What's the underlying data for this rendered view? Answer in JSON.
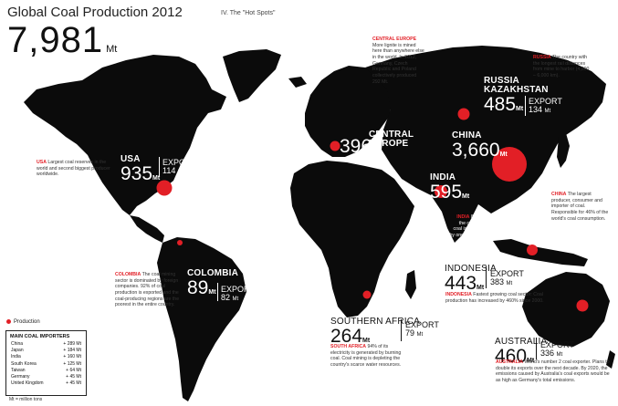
{
  "title": "Global Coal Production 2012",
  "subtitle": "IV. The \"Hot Spots\"",
  "total": {
    "value": "7,981",
    "unit": "Mt"
  },
  "colors": {
    "map": "#0b0b0b",
    "accent": "#e21f26",
    "background": "#ffffff"
  },
  "countries": [
    {
      "key": "usa",
      "name": "USA",
      "production": "935",
      "unit": "Mt",
      "export": "114",
      "export_label": "EXPORT",
      "bubble_mt": 935
    },
    {
      "key": "colombia",
      "name": "COLOMBIA",
      "production": "89",
      "unit": "Mt",
      "export": "82",
      "export_label": "EXPORT",
      "bubble_mt": 89
    },
    {
      "key": "central_europe",
      "name": "CENTRAL EUROPE",
      "production": "396",
      "unit": "Mt",
      "bubble_mt": 396
    },
    {
      "key": "russia",
      "name": "RUSSIA KAZAKHSTAN",
      "production": "485",
      "unit": "Mt",
      "export": "134",
      "export_label": "EXPORT",
      "bubble_mt": 485
    },
    {
      "key": "china",
      "name": "CHINA",
      "production": "3,660",
      "unit": "Mt",
      "bubble_mt": 3660
    },
    {
      "key": "india",
      "name": "INDIA",
      "production": "595",
      "unit": "Mt",
      "bubble_mt": 595
    },
    {
      "key": "indonesia",
      "name": "INDONESIA",
      "production": "443",
      "unit": "Mt",
      "export": "383",
      "export_label": "EXPORT",
      "bubble_mt": 443
    },
    {
      "key": "south_africa",
      "name": "SOUTHERN AFRICA",
      "production": "264",
      "unit": "Mt",
      "export": "79",
      "export_label": "EXPORT",
      "bubble_mt": 264
    },
    {
      "key": "australia",
      "name": "AUSTRALIA",
      "production": "460",
      "unit": "Mt",
      "export": "336",
      "export_label": "EXPORT",
      "bubble_mt": 460
    }
  ],
  "notes": {
    "usa": {
      "head": "USA",
      "text": "Largest coal reserves in the world and second biggest producer worldwide."
    },
    "colombia": {
      "head": "COLOMBIA",
      "text": "The coal mining sector is dominated by foreign companies. 92% of coal production is exported and the coal-producing regions are the poorest in the entire country."
    },
    "central_europe": {
      "head": "CENTRAL EUROPE",
      "text": "More lignite is mined here than anywhere else in the world. In 2012, Germany, Czech Republic and Poland collectively produced 292 Mt."
    },
    "russia": {
      "head": "RUSSIA",
      "text": "The country with the longest rail distances from mine to harbor (4,500 – 6,000 km)."
    },
    "china": {
      "head": "CHINA",
      "text": "The largest producer, consumer and importer of coal. Responsible for 46% of the world's coal consumption."
    },
    "india": {
      "head": "INDIA",
      "text": "80% of the country's coal is supplied by one company: Coal India."
    },
    "indonesia": {
      "head": "INDONESIA",
      "text": "Fastest growing coal sector: Coal production has increased by 460% since 2000."
    },
    "south_africa": {
      "head": "SOUTH AFRICA",
      "text": "94% of its electricity is generated by burning coal. Coal mining is depleting the country's scarce water resources."
    },
    "australia": {
      "head": "AUSTRALIA",
      "text": "World's number 2 coal exporter. Plans to double its exports over the next decade. By 2020, the emissions caused by Australia's coal exports would be as high as Germany's total emissions."
    }
  },
  "legend": {
    "label": "Production"
  },
  "importers": {
    "title": "MAIN COAL IMPORTERS",
    "rows": [
      {
        "country": "China",
        "value": "+ 289 Mt"
      },
      {
        "country": "Japan",
        "value": "+ 184 Mt"
      },
      {
        "country": "India",
        "value": "+ 160 Mt"
      },
      {
        "country": "South Korea",
        "value": "+ 125 Mt"
      },
      {
        "country": "Taiwan",
        "value": "+ 64 Mt"
      },
      {
        "country": "Germany",
        "value": "+ 45 Mt"
      },
      {
        "country": "United Kingdom",
        "value": "+ 45 Mt"
      }
    ],
    "footnote": "Mt = million tons"
  }
}
